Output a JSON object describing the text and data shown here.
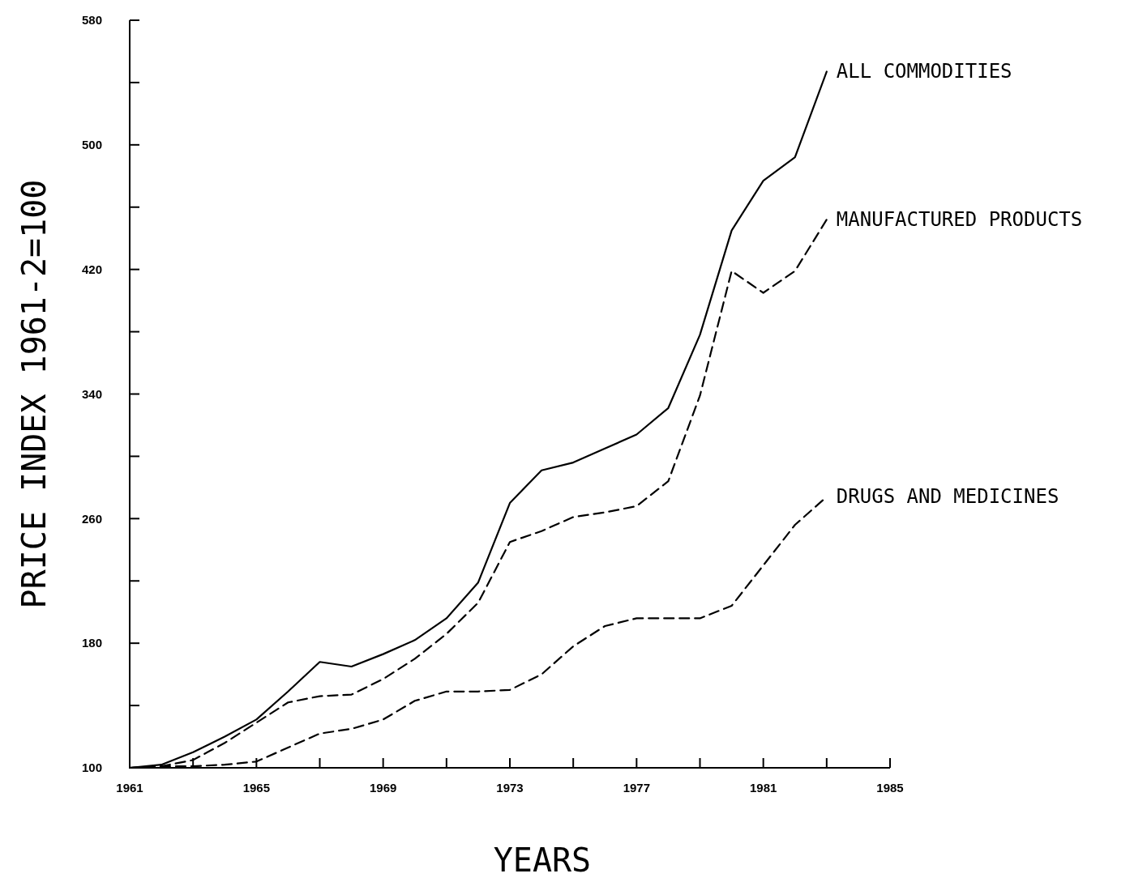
{
  "chart_data": {
    "type": "line",
    "xlabel": "YEARS",
    "ylabel": "PRICE INDEX 1961-2=100",
    "x": [
      1961,
      1962,
      1963,
      1964,
      1965,
      1966,
      1967,
      1968,
      1969,
      1970,
      1971,
      1972,
      1973,
      1974,
      1975,
      1976,
      1977,
      1978,
      1979,
      1980,
      1981,
      1982,
      1983
    ],
    "xlim": [
      1961,
      1985
    ],
    "ylim": [
      100,
      580
    ],
    "xticks": [
      1961,
      {
        "value": 1963,
        "label": null
      },
      1965,
      {
        "value": 1967,
        "label": null
      },
      1969,
      {
        "value": 1971,
        "label": null
      },
      1973,
      {
        "value": 1975,
        "label": null
      },
      1977,
      {
        "value": 1979,
        "label": null
      },
      1981,
      {
        "value": 1983,
        "label": null
      },
      1985
    ],
    "yticks": [
      100,
      {
        "value": 140,
        "label": null
      },
      180,
      {
        "value": 220,
        "label": null
      },
      260,
      {
        "value": 300,
        "label": null
      },
      340,
      {
        "value": 380,
        "label": null
      },
      420,
      {
        "value": 460,
        "label": null
      },
      500,
      {
        "value": 540,
        "label": null
      },
      580
    ],
    "grid": false,
    "marker": "none",
    "series": [
      {
        "name": "ALL COMMODITIES",
        "color": "#000000",
        "line_style": "solid",
        "values": [
          100,
          102,
          110,
          120,
          131,
          149,
          168,
          165,
          173,
          182,
          196,
          219,
          270,
          291,
          296,
          305,
          314,
          331,
          378,
          445,
          477,
          492,
          547
        ]
      },
      {
        "name": "MANUFACTURED PRODUCTS",
        "color": "#000000",
        "line_style": "dashed",
        "values": [
          100,
          101,
          105,
          116,
          129,
          142,
          146,
          147,
          157,
          170,
          186,
          206,
          245,
          252,
          261,
          264,
          268,
          284,
          339,
          419,
          405,
          419,
          452
        ]
      },
      {
        "name": "DRUGS AND MEDICINES",
        "color": "#000000",
        "line_style": "dashed",
        "values": [
          100,
          101,
          101,
          102,
          104,
          113,
          122,
          125,
          131,
          143,
          149,
          149,
          150,
          160,
          178,
          191,
          196,
          196,
          196,
          204,
          230,
          256,
          274
        ]
      }
    ]
  }
}
